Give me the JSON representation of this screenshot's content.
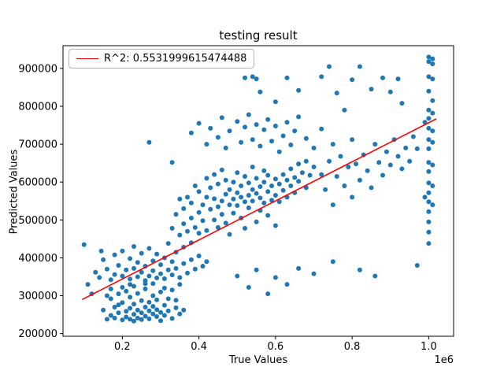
{
  "chart_data": {
    "type": "scatter",
    "title": "testing result",
    "xlabel": "True Values",
    "ylabel": "Predicted Values",
    "x_offset_label": "1e6",
    "r_squared": 0.5531999615474488,
    "xlim": [
      0.045,
      1.065
    ],
    "ylim": [
      193000,
      960000
    ],
    "x_ticks": [
      0.2,
      0.4,
      0.6,
      0.8,
      1.0
    ],
    "y_ticks": [
      200000,
      300000,
      400000,
      500000,
      600000,
      700000,
      800000,
      900000
    ],
    "marker_color": "#1f77b4",
    "legend": {
      "position": "upper left",
      "entries": [
        {
          "label": "R^2: 0.5531999615474488",
          "color": "red",
          "type": "line"
        }
      ]
    },
    "fit_line": {
      "color": "red",
      "points": [
        [
          0.095,
          290000
        ],
        [
          1.02,
          767000
        ]
      ]
    },
    "points": [
      [
        0.15,
        262000
      ],
      [
        0.16,
        238000
      ],
      [
        0.17,
        292000
      ],
      [
        0.17,
        248000
      ],
      [
        0.18,
        270000
      ],
      [
        0.18,
        241000
      ],
      [
        0.19,
        255000
      ],
      [
        0.19,
        305000
      ],
      [
        0.2,
        236000
      ],
      [
        0.2,
        282000
      ],
      [
        0.21,
        259000
      ],
      [
        0.21,
        244000
      ],
      [
        0.21,
        312000
      ],
      [
        0.22,
        238000
      ],
      [
        0.22,
        267000
      ],
      [
        0.22,
        296000
      ],
      [
        0.23,
        251000
      ],
      [
        0.23,
        233000
      ],
      [
        0.23,
        278000
      ],
      [
        0.24,
        262000
      ],
      [
        0.24,
        241000
      ],
      [
        0.24,
        306000
      ],
      [
        0.25,
        255000
      ],
      [
        0.25,
        287000
      ],
      [
        0.25,
        237000
      ],
      [
        0.26,
        270000
      ],
      [
        0.26,
        246000
      ],
      [
        0.26,
        318000
      ],
      [
        0.27,
        260000
      ],
      [
        0.27,
        283000
      ],
      [
        0.27,
        239000
      ],
      [
        0.28,
        252000
      ],
      [
        0.28,
        300000
      ],
      [
        0.28,
        272000
      ],
      [
        0.29,
        245000
      ],
      [
        0.29,
        289000
      ],
      [
        0.29,
        263000
      ],
      [
        0.3,
        256000
      ],
      [
        0.3,
        234000
      ],
      [
        0.3,
        310000
      ],
      [
        0.31,
        275000
      ],
      [
        0.31,
        248000
      ],
      [
        0.32,
        292000
      ],
      [
        0.32,
        260000
      ],
      [
        0.33,
        240000
      ],
      [
        0.33,
        315000
      ],
      [
        0.34,
        268000
      ],
      [
        0.34,
        288000
      ],
      [
        0.35,
        252000
      ],
      [
        0.35,
        330000
      ],
      [
        0.36,
        262000
      ],
      [
        0.19,
        276000
      ],
      [
        0.2,
        322000
      ],
      [
        0.22,
        330000
      ],
      [
        0.26,
        332000
      ],
      [
        0.17,
        318000
      ],
      [
        0.23,
        325000
      ],
      [
        0.28,
        332000
      ],
      [
        0.31,
        320000
      ],
      [
        0.16,
        300000
      ],
      [
        0.13,
        362000
      ],
      [
        0.14,
        348000
      ],
      [
        0.15,
        395000
      ],
      [
        0.16,
        370000
      ],
      [
        0.17,
        342000
      ],
      [
        0.18,
        408000
      ],
      [
        0.18,
        356000
      ],
      [
        0.19,
        380000
      ],
      [
        0.2,
        352000
      ],
      [
        0.2,
        418000
      ],
      [
        0.21,
        368000
      ],
      [
        0.22,
        344000
      ],
      [
        0.22,
        398000
      ],
      [
        0.23,
        372000
      ],
      [
        0.23,
        430000
      ],
      [
        0.24,
        350000
      ],
      [
        0.24,
        388000
      ],
      [
        0.25,
        362000
      ],
      [
        0.25,
        412000
      ],
      [
        0.26,
        340000
      ],
      [
        0.26,
        378000
      ],
      [
        0.27,
        352000
      ],
      [
        0.27,
        425000
      ],
      [
        0.28,
        366000
      ],
      [
        0.28,
        392000
      ],
      [
        0.29,
        347000
      ],
      [
        0.29,
        410000
      ],
      [
        0.3,
        358000
      ],
      [
        0.3,
        382000
      ],
      [
        0.31,
        345000
      ],
      [
        0.31,
        400000
      ],
      [
        0.32,
        368000
      ],
      [
        0.32,
        438000
      ],
      [
        0.33,
        355000
      ],
      [
        0.33,
        390000
      ],
      [
        0.34,
        372000
      ],
      [
        0.34,
        415000
      ],
      [
        0.35,
        348000
      ],
      [
        0.36,
        385000
      ],
      [
        0.36,
        428000
      ],
      [
        0.37,
        360000
      ],
      [
        0.38,
        395000
      ],
      [
        0.38,
        440000
      ],
      [
        0.39,
        370000
      ],
      [
        0.4,
        405000
      ],
      [
        0.41,
        378000
      ],
      [
        0.42,
        390000
      ],
      [
        0.1,
        435000
      ],
      [
        0.11,
        330000
      ],
      [
        0.12,
        305000
      ],
      [
        0.145,
        418000
      ],
      [
        0.33,
        478000
      ],
      [
        0.34,
        515000
      ],
      [
        0.35,
        460000
      ],
      [
        0.35,
        555000
      ],
      [
        0.36,
        490000
      ],
      [
        0.36,
        530000
      ],
      [
        0.37,
        470000
      ],
      [
        0.37,
        560000
      ],
      [
        0.38,
        505000
      ],
      [
        0.38,
        545000
      ],
      [
        0.39,
        480000
      ],
      [
        0.39,
        590000
      ],
      [
        0.4,
        520000
      ],
      [
        0.4,
        465000
      ],
      [
        0.4,
        575000
      ],
      [
        0.41,
        540000
      ],
      [
        0.41,
        498000
      ],
      [
        0.42,
        560000
      ],
      [
        0.42,
        472000
      ],
      [
        0.42,
        610000
      ],
      [
        0.43,
        528000
      ],
      [
        0.43,
        585000
      ],
      [
        0.44,
        500000
      ],
      [
        0.44,
        556000
      ],
      [
        0.44,
        620000
      ],
      [
        0.45,
        535000
      ],
      [
        0.45,
        480000
      ],
      [
        0.45,
        595000
      ],
      [
        0.46,
        550000
      ],
      [
        0.46,
        515000
      ],
      [
        0.46,
        632000
      ],
      [
        0.47,
        568000
      ],
      [
        0.47,
        492000
      ],
      [
        0.47,
        605000
      ],
      [
        0.48,
        540000
      ],
      [
        0.48,
        580000
      ],
      [
        0.48,
        462000
      ],
      [
        0.49,
        555000
      ],
      [
        0.49,
        600000
      ],
      [
        0.49,
        518000
      ],
      [
        0.5,
        572000
      ],
      [
        0.5,
        538000
      ],
      [
        0.5,
        625000
      ],
      [
        0.51,
        560000
      ],
      [
        0.51,
        505000
      ],
      [
        0.51,
        590000
      ],
      [
        0.52,
        548000
      ],
      [
        0.52,
        615000
      ],
      [
        0.52,
        478000
      ],
      [
        0.53,
        565000
      ],
      [
        0.53,
        598000
      ],
      [
        0.53,
        532000
      ],
      [
        0.54,
        580000
      ],
      [
        0.54,
        550000
      ],
      [
        0.54,
        640000
      ],
      [
        0.55,
        570000
      ],
      [
        0.55,
        610000
      ],
      [
        0.55,
        495000
      ],
      [
        0.56,
        558000
      ],
      [
        0.56,
        588000
      ],
      [
        0.56,
        525000
      ],
      [
        0.57,
        600000
      ],
      [
        0.57,
        545000
      ],
      [
        0.57,
        630000
      ],
      [
        0.58,
        575000
      ],
      [
        0.58,
        512000
      ],
      [
        0.58,
        618000
      ],
      [
        0.59,
        590000
      ],
      [
        0.59,
        552000
      ],
      [
        0.6,
        608000
      ],
      [
        0.6,
        565000
      ],
      [
        0.6,
        485000
      ],
      [
        0.61,
        595000
      ],
      [
        0.61,
        548000
      ],
      [
        0.62,
        620000
      ],
      [
        0.62,
        578000
      ],
      [
        0.63,
        605000
      ],
      [
        0.63,
        560000
      ],
      [
        0.64,
        635000
      ],
      [
        0.64,
        590000
      ],
      [
        0.65,
        612000
      ],
      [
        0.65,
        572000
      ],
      [
        0.66,
        648000
      ],
      [
        0.66,
        602000
      ],
      [
        0.67,
        625000
      ],
      [
        0.68,
        585000
      ],
      [
        0.68,
        655000
      ],
      [
        0.69,
        618000
      ],
      [
        0.7,
        640000
      ],
      [
        0.38,
        730000
      ],
      [
        0.4,
        755000
      ],
      [
        0.42,
        700000
      ],
      [
        0.43,
        742000
      ],
      [
        0.45,
        718000
      ],
      [
        0.46,
        770000
      ],
      [
        0.47,
        690000
      ],
      [
        0.48,
        735000
      ],
      [
        0.5,
        760000
      ],
      [
        0.51,
        705000
      ],
      [
        0.52,
        745000
      ],
      [
        0.53,
        778000
      ],
      [
        0.54,
        712000
      ],
      [
        0.55,
        752000
      ],
      [
        0.56,
        695000
      ],
      [
        0.57,
        738000
      ],
      [
        0.58,
        765000
      ],
      [
        0.59,
        708000
      ],
      [
        0.6,
        748000
      ],
      [
        0.61,
        680000
      ],
      [
        0.62,
        722000
      ],
      [
        0.63,
        758000
      ],
      [
        0.64,
        698000
      ],
      [
        0.65,
        735000
      ],
      [
        0.66,
        772000
      ],
      [
        0.68,
        715000
      ],
      [
        0.7,
        690000
      ],
      [
        0.72,
        740000
      ],
      [
        0.27,
        705000
      ],
      [
        0.33,
        652000
      ],
      [
        0.52,
        875000
      ],
      [
        0.54,
        878000
      ],
      [
        0.55,
        872000
      ],
      [
        0.63,
        875000
      ],
      [
        0.72,
        878000
      ],
      [
        0.56,
        838000
      ],
      [
        0.6,
        812000
      ],
      [
        0.66,
        842000
      ],
      [
        0.74,
        905000
      ],
      [
        0.76,
        835000
      ],
      [
        0.8,
        870000
      ],
      [
        0.82,
        905000
      ],
      [
        0.85,
        845000
      ],
      [
        0.88,
        875000
      ],
      [
        0.9,
        838000
      ],
      [
        0.92,
        872000
      ],
      [
        0.93,
        808000
      ],
      [
        0.78,
        790000
      ],
      [
        0.72,
        620000
      ],
      [
        0.73,
        580000
      ],
      [
        0.74,
        655000
      ],
      [
        0.75,
        540000
      ],
      [
        0.75,
        700000
      ],
      [
        0.76,
        615000
      ],
      [
        0.77,
        668000
      ],
      [
        0.78,
        590000
      ],
      [
        0.79,
        640000
      ],
      [
        0.8,
        560000
      ],
      [
        0.8,
        712000
      ],
      [
        0.81,
        648000
      ],
      [
        0.82,
        605000
      ],
      [
        0.83,
        672000
      ],
      [
        0.84,
        630000
      ],
      [
        0.85,
        585000
      ],
      [
        0.86,
        700000
      ],
      [
        0.87,
        652000
      ],
      [
        0.88,
        618000
      ],
      [
        0.89,
        680000
      ],
      [
        0.9,
        645000
      ],
      [
        0.91,
        712000
      ],
      [
        0.92,
        668000
      ],
      [
        0.93,
        635000
      ],
      [
        0.94,
        690000
      ],
      [
        0.95,
        655000
      ],
      [
        0.96,
        720000
      ],
      [
        0.97,
        688000
      ],
      [
        0.5,
        352000
      ],
      [
        0.53,
        322000
      ],
      [
        0.55,
        368000
      ],
      [
        0.58,
        305000
      ],
      [
        0.6,
        348000
      ],
      [
        0.63,
        330000
      ],
      [
        0.66,
        372000
      ],
      [
        0.7,
        358000
      ],
      [
        0.75,
        390000
      ],
      [
        0.82,
        368000
      ],
      [
        0.86,
        352000
      ],
      [
        0.97,
        380000
      ],
      [
        1.0,
        930000
      ],
      [
        1.01,
        925000
      ],
      [
        1.0,
        918000
      ],
      [
        1.01,
        912000
      ],
      [
        1.0,
        878000
      ],
      [
        1.01,
        872000
      ],
      [
        1.0,
        840000
      ],
      [
        1.01,
        815000
      ],
      [
        1.0,
        790000
      ],
      [
        1.01,
        782000
      ],
      [
        1.0,
        768000
      ],
      [
        1.0,
        742000
      ],
      [
        1.01,
        735000
      ],
      [
        1.0,
        712000
      ],
      [
        1.01,
        705000
      ],
      [
        1.0,
        688000
      ],
      [
        1.0,
        652000
      ],
      [
        1.01,
        645000
      ],
      [
        1.0,
        628000
      ],
      [
        1.0,
        598000
      ],
      [
        1.01,
        590000
      ],
      [
        1.0,
        572000
      ],
      [
        1.0,
        548000
      ],
      [
        1.01,
        540000
      ],
      [
        1.0,
        522000
      ],
      [
        1.0,
        495000
      ],
      [
        1.0,
        468000
      ],
      [
        1.0,
        438000
      ],
      [
        0.99,
        758000
      ],
      [
        0.99,
        560000
      ]
    ]
  }
}
